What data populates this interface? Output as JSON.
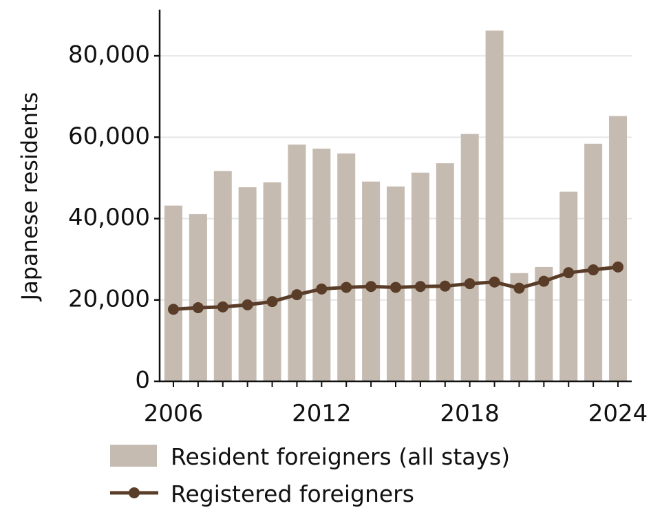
{
  "chart_data": {
    "type": "bar",
    "ylabel": "Japanese residents",
    "xlabel": "",
    "ylim": [
      0,
      90000
    ],
    "yticks": [
      0,
      20000,
      40000,
      60000,
      80000
    ],
    "ytick_labels": [
      "0",
      "20,000",
      "40,000",
      "60,000",
      "80,000"
    ],
    "xticks": [
      2006,
      2012,
      2018,
      2024
    ],
    "xtick_labels": [
      "2006",
      "2012",
      "2018",
      "2024"
    ],
    "grid": "horizontal",
    "legend_position": "bottom",
    "x": [
      2006,
      2007,
      2008,
      2009,
      2010,
      2011,
      2012,
      2013,
      2014,
      2015,
      2016,
      2017,
      2018,
      2019,
      2020,
      2021,
      2022,
      2023,
      2024
    ],
    "series": [
      {
        "name": "Resident foreigners (all stays)",
        "type": "bar",
        "color": "#c5bbb1",
        "values": [
          43200,
          41100,
          51700,
          47700,
          48900,
          58200,
          57200,
          56000,
          49100,
          47900,
          51300,
          53600,
          60800,
          86200,
          26600,
          28100,
          46600,
          58400,
          65200
        ]
      },
      {
        "name": "Registered foreigners",
        "type": "line",
        "color": "#5a3d28",
        "values": [
          17700,
          18100,
          18300,
          18800,
          19600,
          21300,
          22700,
          23100,
          23300,
          23100,
          23300,
          23400,
          24000,
          24400,
          22900,
          24600,
          26700,
          27400,
          28100
        ]
      }
    ]
  }
}
